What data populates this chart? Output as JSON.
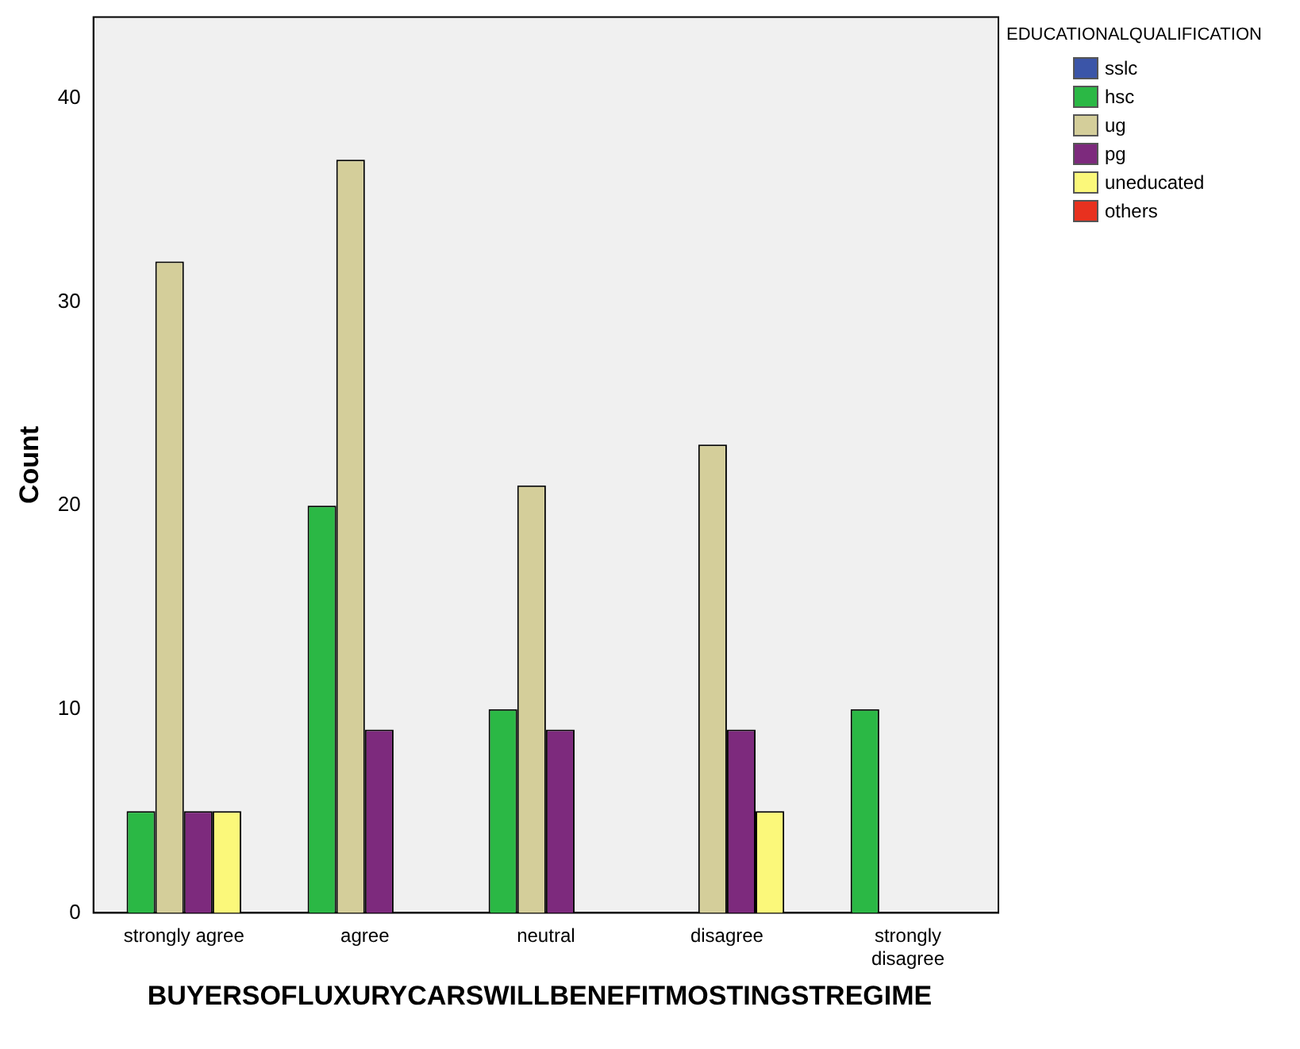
{
  "chart_data": {
    "type": "bar",
    "ylabel": "Count",
    "xlabel": "BUYERSOFLUXURYCARSWILLBENEFITMOSTINGSTREGIME",
    "legend_title": "EDUCATIONALQUALIFICATION",
    "legend": "top right",
    "grid": false,
    "categories": [
      "strongly agree",
      "agree",
      "neutral",
      "disagree",
      "strongly disagree"
    ],
    "ylim": [
      0,
      44
    ],
    "yticks": [
      0,
      10,
      20,
      30,
      40
    ],
    "series": [
      {
        "name": "sslc",
        "color": "#3b55a8",
        "values": [
          null,
          null,
          null,
          null,
          null
        ]
      },
      {
        "name": "hsc",
        "color": "#2bb845",
        "values": [
          5,
          20,
          10,
          null,
          10
        ]
      },
      {
        "name": "ug",
        "color": "#d4ce9a",
        "values": [
          32,
          37,
          21,
          23,
          null
        ]
      },
      {
        "name": "pg",
        "color": "#7d2a7d",
        "values": [
          5,
          9,
          9,
          9,
          null
        ]
      },
      {
        "name": "uneducated",
        "color": "#fbf87a",
        "values": [
          5,
          null,
          null,
          5,
          null
        ]
      },
      {
        "name": "others",
        "color": "#e8311f",
        "values": [
          null,
          null,
          null,
          null,
          null
        ]
      }
    ]
  }
}
